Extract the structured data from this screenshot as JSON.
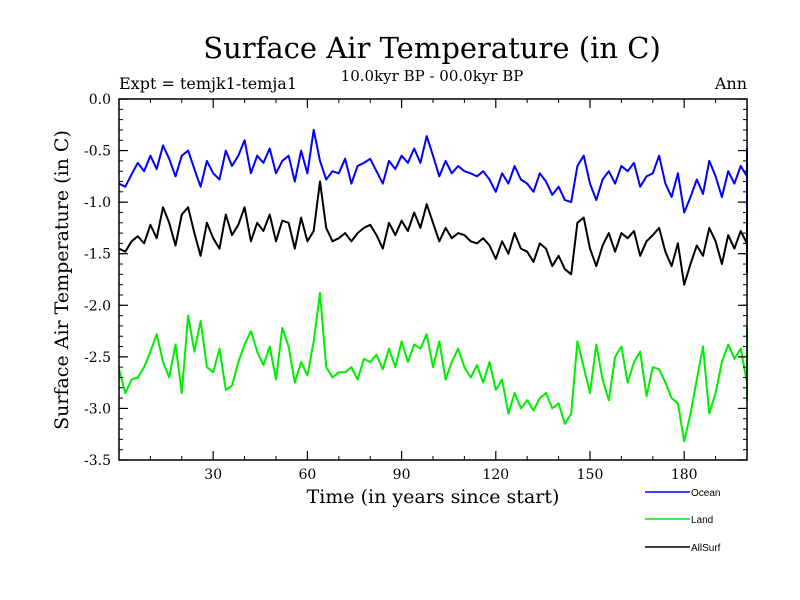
{
  "chart_data": {
    "type": "line",
    "title": "Surface Air Temperature (in C)",
    "subtitle": "10.0kyr BP - 00.0kyr BP",
    "left_label": "Expt = temjk1-temja1",
    "right_label": "Ann",
    "xlabel": "Time (in years since start)",
    "ylabel": "Surface Air Temperature (in C)",
    "xlim": [
      0,
      200
    ],
    "ylim": [
      -3.5,
      0.0
    ],
    "x_ticks": [
      30,
      60,
      90,
      120,
      150,
      180
    ],
    "y_ticks": [
      0.0,
      -0.5,
      -1.0,
      -1.5,
      -2.0,
      -2.5,
      -3.0,
      -3.5
    ],
    "y_tick_labels": [
      "0.0",
      "-0.5",
      "-1.0",
      "-1.5",
      "-2.0",
      "-2.5",
      "-3.0",
      "-3.5"
    ],
    "x_start": 0,
    "x_step": 2,
    "legend_position": "bottom-right outside",
    "series": [
      {
        "name": "Ocean",
        "color": "#0000ff",
        "values": [
          -0.82,
          -0.85,
          -0.73,
          -0.62,
          -0.7,
          -0.55,
          -0.68,
          -0.45,
          -0.58,
          -0.75,
          -0.55,
          -0.5,
          -0.68,
          -0.85,
          -0.6,
          -0.72,
          -0.78,
          -0.5,
          -0.65,
          -0.55,
          -0.4,
          -0.72,
          -0.55,
          -0.62,
          -0.48,
          -0.72,
          -0.6,
          -0.55,
          -0.8,
          -0.5,
          -0.72,
          -0.3,
          -0.6,
          -0.78,
          -0.7,
          -0.72,
          -0.58,
          -0.82,
          -0.65,
          -0.62,
          -0.58,
          -0.7,
          -0.82,
          -0.6,
          -0.68,
          -0.55,
          -0.62,
          -0.48,
          -0.62,
          -0.36,
          -0.55,
          -0.75,
          -0.6,
          -0.72,
          -0.65,
          -0.7,
          -0.72,
          -0.75,
          -0.7,
          -0.78,
          -0.9,
          -0.72,
          -0.82,
          -0.65,
          -0.78,
          -0.82,
          -0.9,
          -0.72,
          -0.8,
          -0.93,
          -0.85,
          -0.98,
          -1.0,
          -0.65,
          -0.55,
          -0.82,
          -0.98,
          -0.78,
          -0.7,
          -0.82,
          -0.65,
          -0.7,
          -0.62,
          -0.85,
          -0.75,
          -0.72,
          -0.55,
          -0.82,
          -0.95,
          -0.72,
          -1.1,
          -0.95,
          -0.78,
          -0.92,
          -0.6,
          -0.75,
          -0.95,
          -0.7,
          -0.82,
          -0.65,
          -0.75,
          -0.95,
          -0.72,
          -0.62,
          -0.9,
          -0.55,
          -0.72,
          -0.6,
          -0.65,
          -0.78,
          -0.72,
          -0.85,
          -0.6,
          -0.7,
          -0.85,
          -0.68,
          -0.65,
          -0.72,
          -0.58,
          -0.72,
          -0.6,
          -0.78,
          -0.72,
          -0.62,
          -0.92,
          -0.72,
          -0.8,
          -0.55,
          -0.7,
          -0.82,
          -0.72,
          -0.78,
          -0.72,
          -0.88,
          -0.58,
          -0.85,
          -0.7,
          -0.78,
          -0.72,
          -0.85,
          -0.75,
          -0.82,
          -0.72,
          -0.7,
          -0.75,
          -0.72,
          -0.85,
          -0.7,
          -0.78,
          -0.92,
          -0.72,
          -0.85,
          -0.6,
          -0.72,
          -0.68,
          -0.72,
          -0.78,
          -0.75,
          -0.72,
          -0.95,
          -1.1,
          -0.95,
          -0.82,
          -0.68,
          -0.72,
          -0.85,
          -0.62,
          -0.75,
          -0.72,
          -0.65,
          -0.85,
          -0.72,
          -0.48,
          -0.72,
          -0.65,
          -0.62,
          -0.72,
          -0.82,
          -0.72,
          -0.78,
          -0.72,
          -0.85,
          -0.72,
          -0.6,
          -0.75,
          -0.72,
          -0.8,
          -0.72,
          -0.65,
          -0.82,
          -0.9,
          -0.72,
          -0.82,
          -1.0,
          -0.85,
          -0.72,
          -0.68,
          -0.55,
          -0.65,
          -0.58,
          -0.65
        ]
      },
      {
        "name": "Land",
        "color": "#00ee00",
        "values": [
          -2.62,
          -2.85,
          -2.72,
          -2.7,
          -2.6,
          -2.45,
          -2.28,
          -2.55,
          -2.7,
          -2.38,
          -2.85,
          -2.1,
          -2.45,
          -2.15,
          -2.6,
          -2.65,
          -2.42,
          -2.82,
          -2.78,
          -2.55,
          -2.38,
          -2.25,
          -2.45,
          -2.58,
          -2.4,
          -2.72,
          -2.22,
          -2.4,
          -2.75,
          -2.55,
          -2.68,
          -2.35,
          -1.88,
          -2.6,
          -2.7,
          -2.65,
          -2.65,
          -2.6,
          -2.72,
          -2.52,
          -2.55,
          -2.48,
          -2.62,
          -2.42,
          -2.6,
          -2.35,
          -2.55,
          -2.38,
          -2.42,
          -2.28,
          -2.6,
          -2.35,
          -2.72,
          -2.55,
          -2.42,
          -2.6,
          -2.7,
          -2.58,
          -2.75,
          -2.55,
          -2.82,
          -2.72,
          -3.05,
          -2.85,
          -3.0,
          -2.92,
          -3.02,
          -2.9,
          -2.85,
          -3.0,
          -2.95,
          -3.15,
          -3.05,
          -2.35,
          -2.6,
          -2.85,
          -2.38,
          -2.72,
          -2.92,
          -2.5,
          -2.4,
          -2.75,
          -2.55,
          -2.45,
          -2.88,
          -2.6,
          -2.62,
          -2.75,
          -2.9,
          -2.95,
          -3.32,
          -3.05,
          -2.72,
          -2.4,
          -3.05,
          -2.85,
          -2.55,
          -2.38,
          -2.52,
          -2.42,
          -2.75,
          -2.6,
          -2.55,
          -2.88,
          -2.45,
          -2.62,
          -2.55,
          -2.22,
          -2.38,
          -2.75,
          -2.45,
          -2.6,
          -2.8,
          -2.52,
          -2.72,
          -2.68,
          -2.58,
          -2.78,
          -2.35,
          -2.82,
          -2.65,
          -2.55,
          -2.45,
          -2.62,
          -2.78,
          -2.55,
          -2.48,
          -2.72,
          -2.88,
          -2.55,
          -2.42,
          -2.6,
          -2.92,
          -2.75,
          -2.62,
          -2.6,
          -2.88,
          -2.72,
          -2.65,
          -2.6,
          -2.78,
          -2.7,
          -2.6,
          -2.85,
          -2.68,
          -2.82,
          -2.72,
          -2.65,
          -2.92,
          -2.78,
          -2.72,
          -2.85,
          -2.62,
          -2.85,
          -2.92,
          -2.68,
          -2.78,
          -2.72,
          -2.45,
          -2.72,
          -2.75,
          -2.6,
          -2.72,
          -2.78,
          -2.62,
          -2.48,
          -2.65,
          -2.75,
          -2.55,
          -2.6,
          -2.82,
          -2.65,
          -2.72,
          -2.6,
          -2.85,
          -2.72,
          -2.9,
          -2.68,
          -2.88,
          -2.62,
          -2.78,
          -2.75,
          -2.55,
          -2.7,
          -2.82,
          -2.65,
          -2.78,
          -2.55,
          -2.7,
          -2.88,
          -2.62,
          -2.75,
          -2.58,
          -2.68,
          -2.8,
          -2.65,
          -2.38,
          -2.62,
          -2.55,
          -2.45,
          -2.62,
          -2.3,
          -2.4
        ]
      },
      {
        "name": "AllSurf",
        "color": "#000000",
        "values": [
          -1.45,
          -1.48,
          -1.38,
          -1.33,
          -1.4,
          -1.22,
          -1.35,
          -1.05,
          -1.2,
          -1.42,
          -1.12,
          -1.05,
          -1.3,
          -1.52,
          -1.2,
          -1.35,
          -1.45,
          -1.12,
          -1.32,
          -1.22,
          -1.05,
          -1.38,
          -1.2,
          -1.28,
          -1.12,
          -1.38,
          -1.18,
          -1.2,
          -1.45,
          -1.15,
          -1.38,
          -1.28,
          -0.8,
          -1.25,
          -1.38,
          -1.35,
          -1.3,
          -1.38,
          -1.3,
          -1.25,
          -1.22,
          -1.32,
          -1.45,
          -1.2,
          -1.32,
          -1.18,
          -1.28,
          -1.1,
          -1.25,
          -1.02,
          -1.2,
          -1.38,
          -1.25,
          -1.35,
          -1.3,
          -1.32,
          -1.38,
          -1.4,
          -1.35,
          -1.42,
          -1.55,
          -1.38,
          -1.5,
          -1.3,
          -1.45,
          -1.48,
          -1.58,
          -1.4,
          -1.45,
          -1.62,
          -1.52,
          -1.65,
          -1.7,
          -1.2,
          -1.15,
          -1.45,
          -1.62,
          -1.42,
          -1.3,
          -1.48,
          -1.3,
          -1.35,
          -1.28,
          -1.52,
          -1.38,
          -1.32,
          -1.25,
          -1.48,
          -1.62,
          -1.4,
          -1.8,
          -1.6,
          -1.42,
          -1.52,
          -1.25,
          -1.38,
          -1.6,
          -1.32,
          -1.45,
          -1.28,
          -1.4,
          -1.58,
          -1.35,
          -1.28,
          -1.52,
          -1.18,
          -1.38,
          -1.1,
          -1.2,
          -1.42,
          -1.35,
          -1.5,
          -1.25,
          -1.32,
          -1.5,
          -1.32,
          -1.3,
          -1.38,
          -1.2,
          -1.42,
          -1.25,
          -1.42,
          -1.35,
          -1.28,
          -1.55,
          -1.35,
          -1.45,
          -1.22,
          -1.35,
          -1.48,
          -1.35,
          -1.42,
          -1.38,
          -1.52,
          -1.22,
          -1.5,
          -1.35,
          -1.42,
          -1.38,
          -1.5,
          -1.38,
          -1.45,
          -1.38,
          -1.35,
          -1.42,
          -1.38,
          -1.5,
          -1.35,
          -1.45,
          -1.55,
          -1.38,
          -1.5,
          -1.28,
          -1.38,
          -1.35,
          -1.38,
          -1.45,
          -1.42,
          -1.38,
          -1.55,
          -1.68,
          -1.55,
          -1.48,
          -1.35,
          -1.38,
          -1.5,
          -1.28,
          -1.42,
          -1.38,
          -1.3,
          -1.5,
          -1.35,
          -1.12,
          -1.35,
          -1.3,
          -1.28,
          -1.38,
          -1.48,
          -1.38,
          -1.45,
          -1.38,
          -1.5,
          -1.38,
          -1.25,
          -1.42,
          -1.38,
          -1.45,
          -1.38,
          -1.3,
          -1.48,
          -1.55,
          -1.38,
          -1.48,
          -1.62,
          -1.5,
          -1.35,
          -1.32,
          -1.2,
          -1.3,
          -1.15,
          -1.3,
          -1.18,
          -1.18
        ]
      }
    ]
  }
}
